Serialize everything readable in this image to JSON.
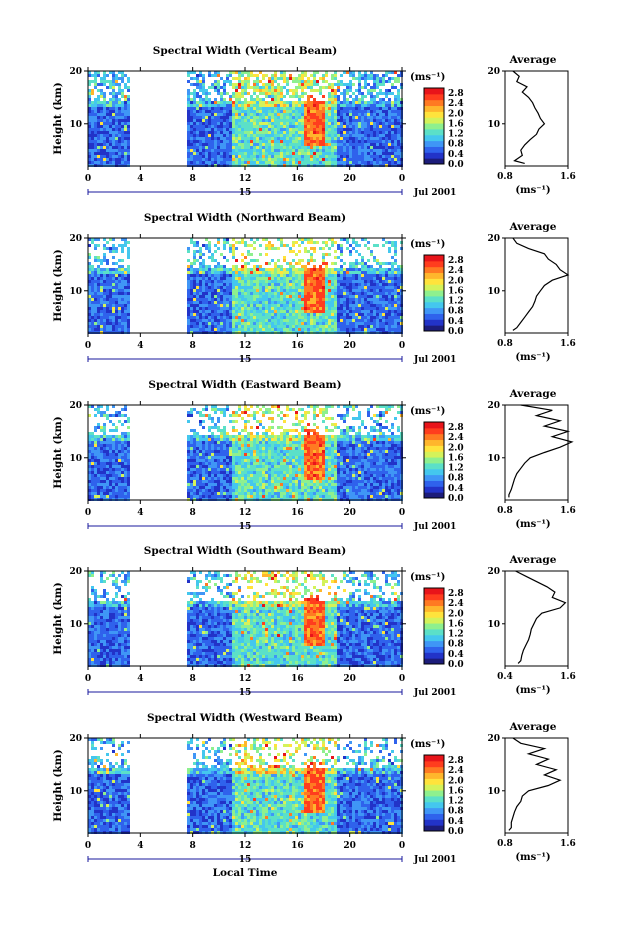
{
  "colors": {
    "scale": [
      "#1c1c7a",
      "#2233c8",
      "#2f62ec",
      "#3f96f6",
      "#44c7ee",
      "#5be0c8",
      "#8ef08e",
      "#d4f25a",
      "#ffe33c",
      "#ffb62c",
      "#ff7a22",
      "#ff3d1e",
      "#e8141a"
    ],
    "background": "#ffffff"
  },
  "chart_data": [
    {
      "type": "heatmap",
      "title": "Spectral Width (Vertical Beam)",
      "ylabel": "Height (km)",
      "xlabel": "",
      "x_ticks": [
        "0",
        "4",
        "8",
        "12",
        "16",
        "20",
        "0"
      ],
      "x_range": [
        0,
        24
      ],
      "y_ticks": [
        "20",
        "10"
      ],
      "y_range": [
        2,
        20
      ],
      "date_mark": "15",
      "date_label": "Jul 2001",
      "colorbar": {
        "unit": "(ms⁻¹)",
        "ticks": [
          "2.8",
          "2.4",
          "2.0",
          "1.6",
          "1.2",
          "0.8",
          "0.4",
          "0.0"
        ],
        "range": [
          0,
          3.0
        ]
      },
      "data_gap_hours": [
        3,
        7.5
      ],
      "profile": {
        "title": "Average",
        "xlabel": "(ms⁻¹)",
        "x_ticks": [
          "0.8",
          "1.6"
        ],
        "xlim": [
          0.8,
          1.6
        ],
        "y_ticks": [
          "20",
          "10"
        ],
        "heights": [
          2.5,
          3,
          4,
          5,
          6,
          7,
          8,
          9,
          10,
          11,
          12,
          13,
          14,
          15,
          16,
          17,
          18,
          19,
          20
        ],
        "values": [
          1.05,
          0.92,
          1.02,
          1.0,
          1.05,
          1.12,
          1.2,
          1.23,
          1.3,
          1.25,
          1.22,
          1.18,
          1.15,
          1.1,
          1.02,
          1.08,
          0.95,
          0.98,
          0.9
        ]
      }
    },
    {
      "type": "heatmap",
      "title": "Spectral Width (Northward Beam)",
      "ylabel": "Height (km)",
      "xlabel": "",
      "x_ticks": [
        "0",
        "4",
        "8",
        "12",
        "16",
        "20",
        "0"
      ],
      "x_range": [
        0,
        24
      ],
      "y_ticks": [
        "20",
        "10"
      ],
      "y_range": [
        2,
        20
      ],
      "date_mark": "15",
      "date_label": "Jul 2001",
      "colorbar": {
        "unit": "(ms⁻¹)",
        "ticks": [
          "2.8",
          "2.4",
          "2.0",
          "1.6",
          "1.2",
          "0.8",
          "0.4",
          "0.0"
        ],
        "range": [
          0,
          3.0
        ]
      },
      "data_gap_hours": [
        3,
        7.5
      ],
      "profile": {
        "title": "Average",
        "xlabel": "(ms⁻¹)",
        "x_ticks": [
          "0.8",
          "1.6"
        ],
        "xlim": [
          0.8,
          1.6
        ],
        "y_ticks": [
          "20",
          "10"
        ],
        "heights": [
          2.5,
          3,
          4,
          5,
          6,
          7,
          8,
          9,
          10,
          11,
          12,
          13,
          14,
          15,
          16,
          17,
          18,
          19,
          20
        ],
        "values": [
          0.9,
          0.95,
          1.0,
          1.05,
          1.1,
          1.15,
          1.18,
          1.2,
          1.25,
          1.3,
          1.4,
          1.6,
          1.5,
          1.45,
          1.35,
          1.3,
          1.1,
          0.95,
          0.9
        ]
      }
    },
    {
      "type": "heatmap",
      "title": "Spectral Width (Eastward Beam)",
      "ylabel": "Height (km)",
      "xlabel": "",
      "x_ticks": [
        "0",
        "4",
        "8",
        "12",
        "16",
        "20",
        "0"
      ],
      "x_range": [
        0,
        24
      ],
      "y_ticks": [
        "20",
        "10"
      ],
      "y_range": [
        2,
        20
      ],
      "date_mark": "15",
      "date_label": "Jul 2001",
      "colorbar": {
        "unit": "(ms⁻¹)",
        "ticks": [
          "2.8",
          "2.4",
          "2.0",
          "1.6",
          "1.2",
          "0.8",
          "0.4",
          "0.0"
        ],
        "range": [
          0,
          3.0
        ]
      },
      "data_gap_hours": [
        3,
        7.5
      ],
      "profile": {
        "title": "Average",
        "xlabel": "(ms⁻¹)",
        "x_ticks": [
          "0.8",
          "1.6"
        ],
        "xlim": [
          0.8,
          1.6
        ],
        "y_ticks": [
          "20",
          "10"
        ],
        "heights": [
          2.5,
          3,
          4,
          5,
          6,
          7,
          8,
          9,
          10,
          11,
          12,
          13,
          14,
          15,
          16,
          17,
          18,
          19,
          20
        ],
        "values": [
          0.85,
          0.85,
          0.88,
          0.9,
          0.92,
          0.95,
          1.0,
          1.05,
          1.12,
          1.3,
          1.5,
          1.65,
          1.4,
          1.6,
          1.3,
          1.5,
          1.2,
          1.4,
          1.0
        ]
      }
    },
    {
      "type": "heatmap",
      "title": "Spectral Width (Southward Beam)",
      "ylabel": "Height (km)",
      "xlabel": "",
      "x_ticks": [
        "0",
        "4",
        "8",
        "12",
        "16",
        "20",
        "0"
      ],
      "x_range": [
        0,
        24
      ],
      "y_ticks": [
        "20",
        "10"
      ],
      "y_range": [
        2,
        20
      ],
      "date_mark": "15",
      "date_label": "Jul 2001",
      "colorbar": {
        "unit": "(ms⁻¹)",
        "ticks": [
          "2.8",
          "2.4",
          "2.0",
          "1.6",
          "1.2",
          "0.8",
          "0.4",
          "0.0"
        ],
        "range": [
          0,
          3.0
        ]
      },
      "data_gap_hours": [
        3,
        7.5
      ],
      "profile": {
        "title": "Average",
        "xlabel": "(ms⁻¹)",
        "x_ticks": [
          "0.4",
          "1.6"
        ],
        "xlim": [
          0.4,
          1.6
        ],
        "y_ticks": [
          "20",
          "10"
        ],
        "heights": [
          2.5,
          3,
          4,
          5,
          6,
          7,
          8,
          9,
          10,
          11,
          12,
          13,
          14,
          15,
          16,
          17,
          18,
          19,
          20
        ],
        "values": [
          0.65,
          0.7,
          0.72,
          0.75,
          0.8,
          0.85,
          0.88,
          0.9,
          0.95,
          1.0,
          1.1,
          1.45,
          1.55,
          1.3,
          1.35,
          1.2,
          1.0,
          0.8,
          0.6
        ]
      }
    },
    {
      "type": "heatmap",
      "title": "Spectral Width (Westward Beam)",
      "ylabel": "Height (km)",
      "xlabel": "Local Time",
      "x_ticks": [
        "0",
        "4",
        "8",
        "12",
        "16",
        "20",
        "0"
      ],
      "x_range": [
        0,
        24
      ],
      "y_ticks": [
        "20",
        "10"
      ],
      "y_range": [
        2,
        20
      ],
      "date_mark": "15",
      "date_label": "Jul 2001",
      "colorbar": {
        "unit": "(ms⁻¹)",
        "ticks": [
          "2.8",
          "2.4",
          "2.0",
          "1.6",
          "1.2",
          "0.8",
          "0.4",
          "0.0"
        ],
        "range": [
          0,
          3.0
        ]
      },
      "data_gap_hours": [
        3,
        7.5
      ],
      "profile": {
        "title": "Average",
        "xlabel": "(ms⁻¹)",
        "x_ticks": [
          "0.8",
          "1.6"
        ],
        "xlim": [
          0.8,
          1.6
        ],
        "y_ticks": [
          "20",
          "10"
        ],
        "heights": [
          2.5,
          3,
          4,
          5,
          6,
          7,
          8,
          9,
          10,
          11,
          12,
          13,
          14,
          15,
          16,
          17,
          18,
          19,
          20
        ],
        "values": [
          0.85,
          0.88,
          0.88,
          0.9,
          0.92,
          0.95,
          1.0,
          1.02,
          1.1,
          1.35,
          1.5,
          1.3,
          1.45,
          1.2,
          1.35,
          1.1,
          1.3,
          1.0,
          0.9
        ]
      }
    }
  ]
}
